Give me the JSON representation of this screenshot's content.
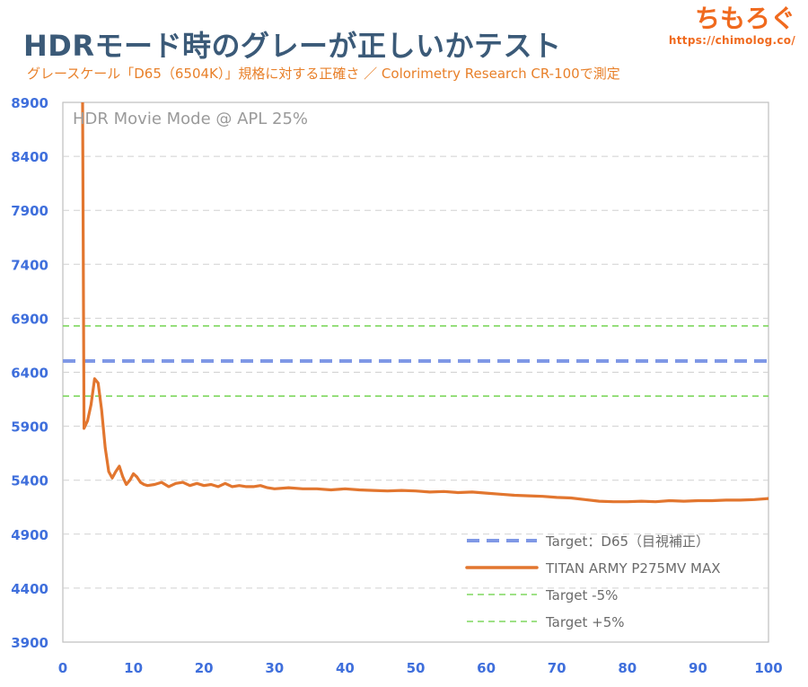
{
  "header": {
    "title": "HDRモード時のグレーが正しいかテスト",
    "subtitle": "グレースケール「D65（6504K）」規格に対する正確さ ／ Colorimetry Research CR-100で測定"
  },
  "brand": {
    "name": "ちもろぐ",
    "url": "https://chimolog.co/"
  },
  "chart_data": {
    "type": "line",
    "annotation": "HDR Movie Mode @ APL 25%",
    "xlim": [
      0,
      100
    ],
    "ylim": [
      3900,
      8900
    ],
    "x_ticks": [
      0,
      10,
      20,
      30,
      40,
      50,
      60,
      70,
      80,
      90,
      100
    ],
    "y_ticks": [
      3900,
      4400,
      4900,
      5400,
      5900,
      6400,
      6900,
      7400,
      7900,
      8400,
      8900
    ],
    "grid": true,
    "legend_position": "bottom-right",
    "series": [
      {
        "name": "Target：D65（目視補正）",
        "style": "dashed",
        "color": "#7f98e6",
        "x": [
          0,
          100
        ],
        "y": [
          6504,
          6504
        ]
      },
      {
        "name": "TITAN ARMY P275MV MAX",
        "style": "solid",
        "color": "#e2762f",
        "x": [
          2.8,
          3.0,
          3.5,
          4.0,
          4.5,
          5.0,
          5.5,
          6.0,
          6.5,
          7.0,
          7.5,
          8.0,
          8.5,
          9.0,
          9.5,
          10.0,
          10.5,
          11.0,
          11.5,
          12.0,
          13.0,
          14.0,
          15.0,
          16.0,
          17.0,
          18.0,
          19.0,
          20.0,
          21.0,
          22.0,
          23.0,
          24.0,
          25.0,
          26.0,
          27.0,
          28.0,
          29.0,
          30.0,
          32.0,
          34.0,
          36.0,
          38.0,
          40.0,
          42.0,
          44.0,
          46.0,
          48.0,
          50.0,
          52.0,
          54.0,
          56.0,
          58.0,
          60.0,
          62.0,
          64.0,
          66.0,
          68.0,
          70.0,
          72.0,
          74.0,
          76.0,
          78.0,
          80.0,
          82.0,
          84.0,
          86.0,
          88.0,
          90.0,
          92.0,
          94.0,
          96.0,
          98.0,
          100.0
        ],
        "y": [
          8900,
          5880,
          5950,
          6100,
          6340,
          6300,
          6050,
          5700,
          5480,
          5420,
          5480,
          5530,
          5430,
          5360,
          5400,
          5460,
          5430,
          5380,
          5360,
          5350,
          5360,
          5380,
          5340,
          5370,
          5380,
          5350,
          5370,
          5350,
          5360,
          5340,
          5370,
          5340,
          5350,
          5340,
          5340,
          5350,
          5330,
          5320,
          5330,
          5320,
          5320,
          5310,
          5320,
          5310,
          5305,
          5300,
          5305,
          5300,
          5290,
          5295,
          5285,
          5290,
          5280,
          5270,
          5260,
          5255,
          5250,
          5240,
          5235,
          5220,
          5205,
          5200,
          5200,
          5205,
          5200,
          5210,
          5205,
          5210,
          5210,
          5215,
          5215,
          5220,
          5230
        ]
      },
      {
        "name": "Target -5%",
        "style": "dashed",
        "color": "#7ed75e",
        "x": [
          0,
          100
        ],
        "y": [
          6179,
          6179
        ]
      },
      {
        "name": "Target +5%",
        "style": "dashed",
        "color": "#7ed75e",
        "x": [
          0,
          100
        ],
        "y": [
          6829,
          6829
        ]
      }
    ]
  }
}
